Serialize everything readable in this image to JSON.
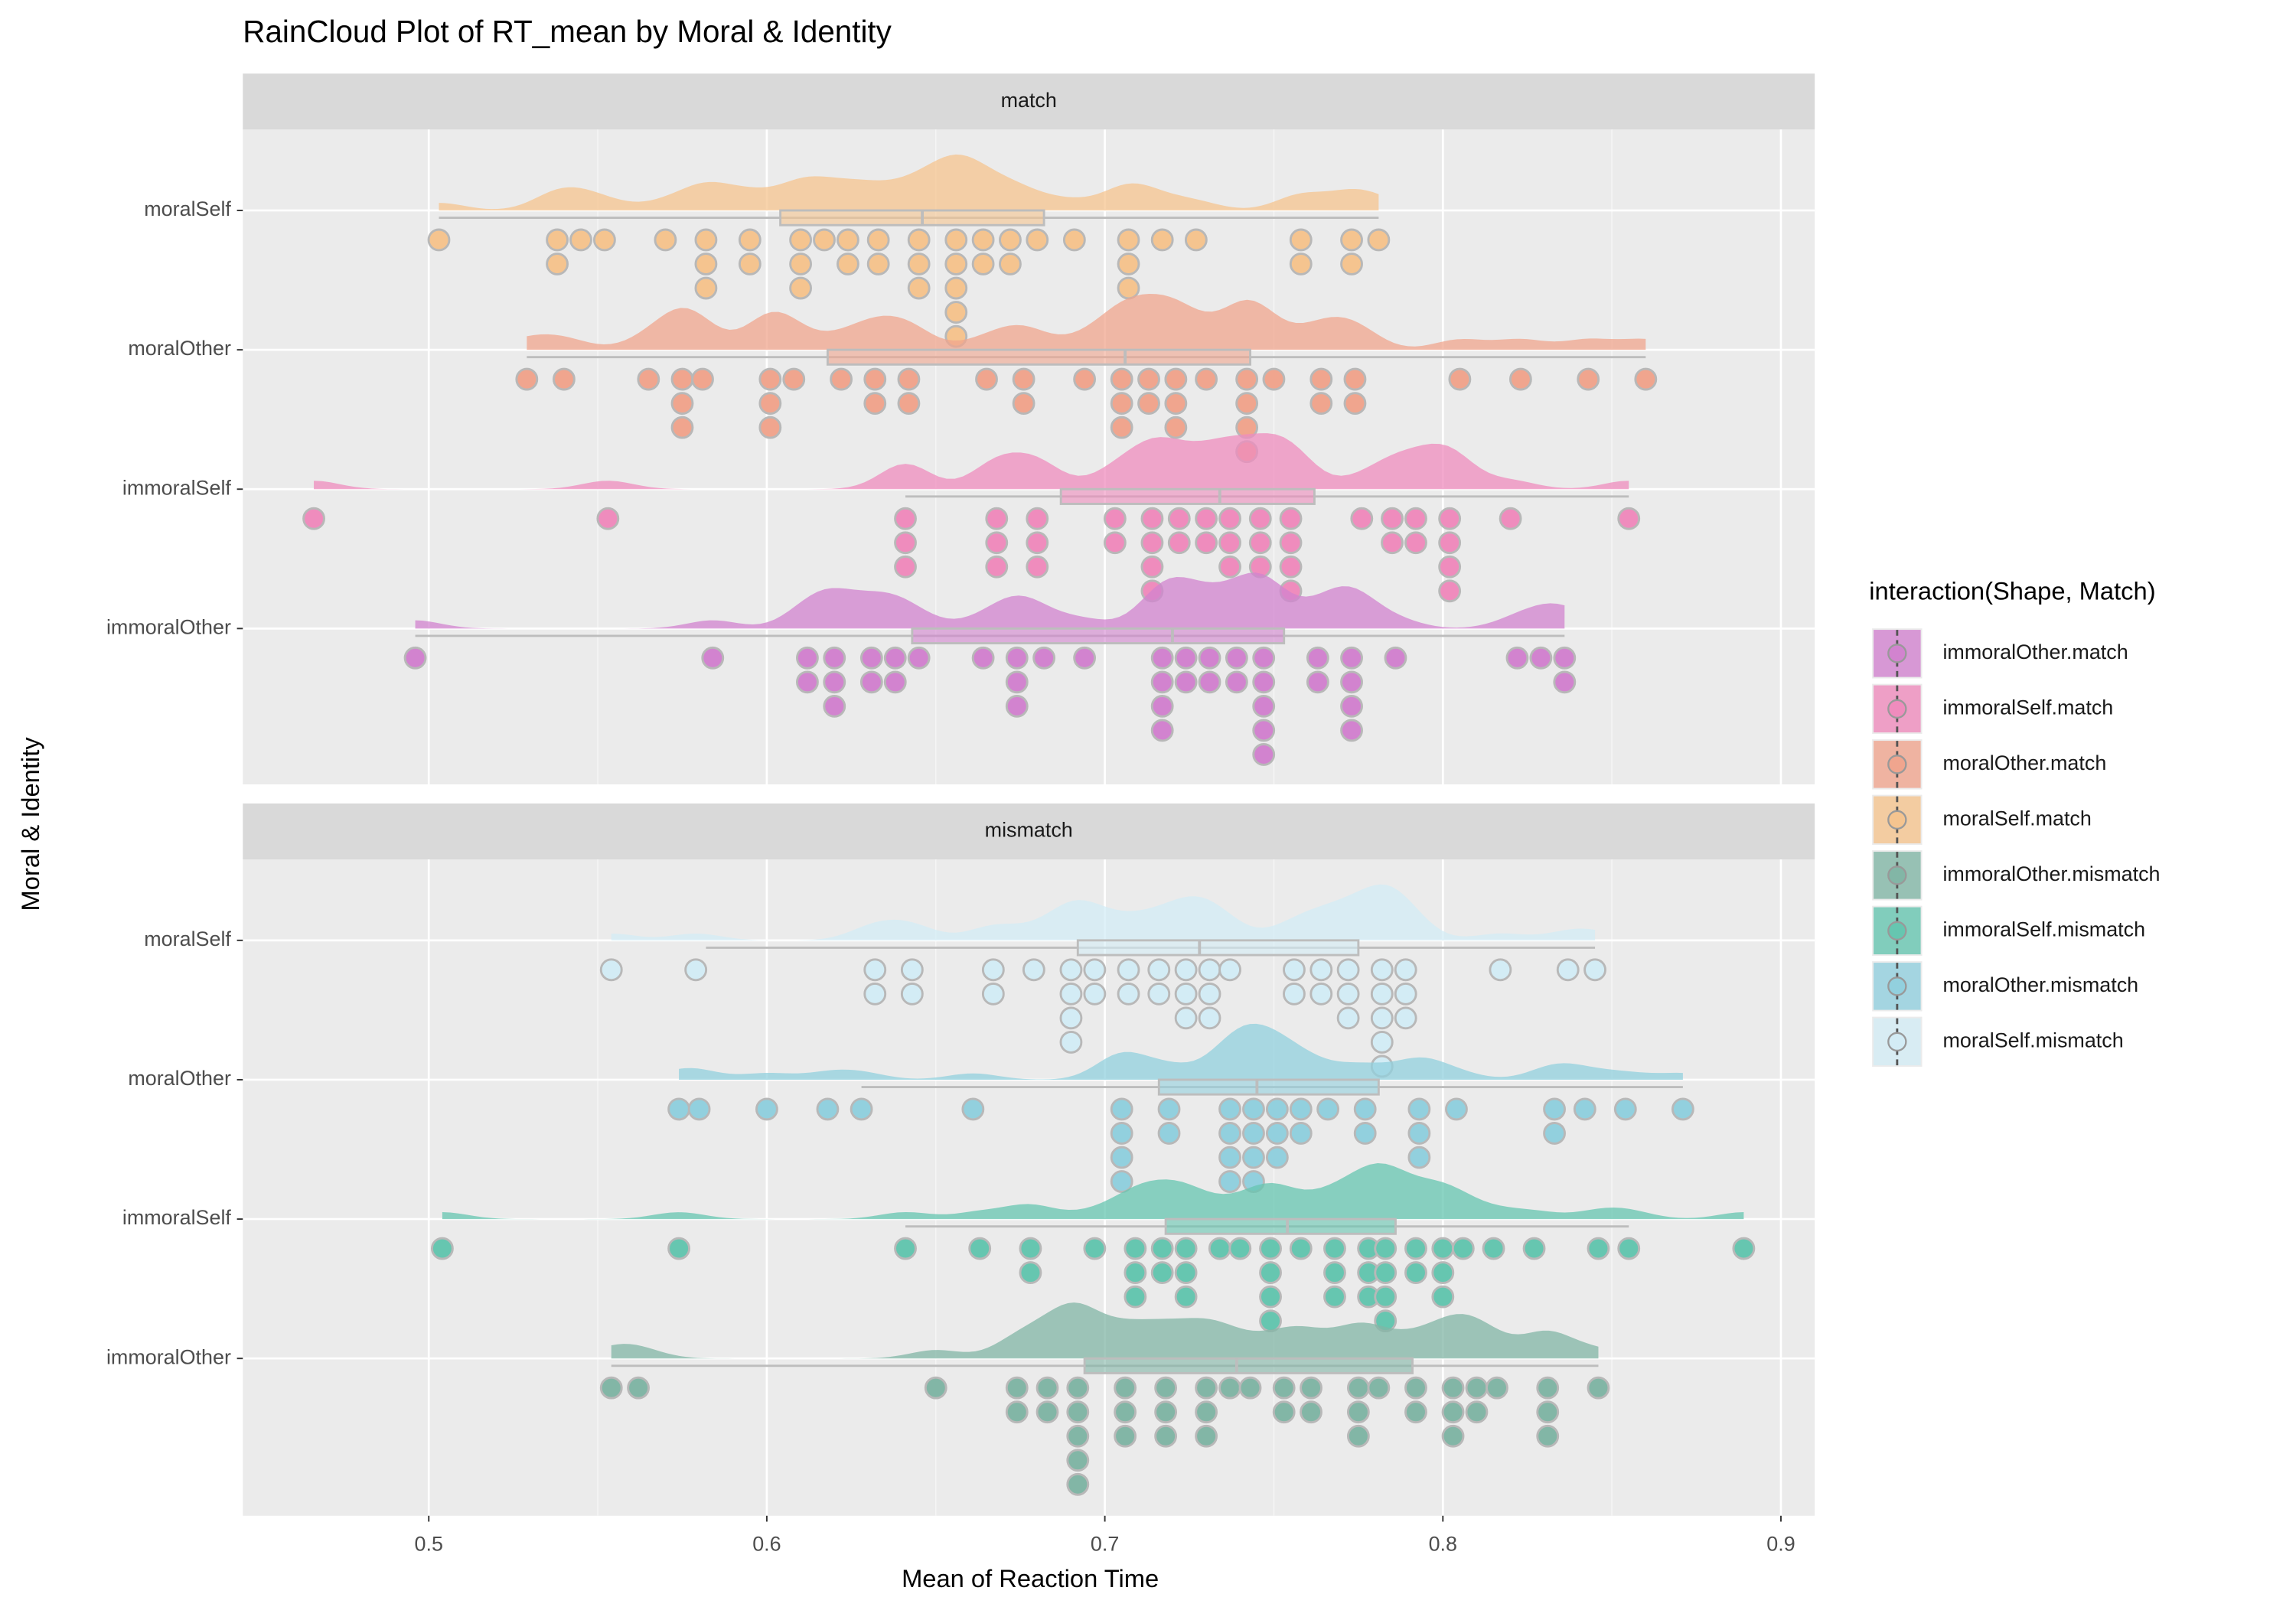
{
  "chart_data": {
    "type": "raincloud",
    "title": "RainCloud Plot of RT_mean by Moral & Identity",
    "x_label": "Mean of Reaction Time",
    "y_label": "Moral & Identity",
    "legend_title": "interaction(Shape, Match)",
    "xlim": [
      0.445,
      0.91
    ],
    "xticks": [
      0.5,
      0.6,
      0.7,
      0.8,
      0.9
    ],
    "grid": true,
    "facets": [
      {
        "label": "match",
        "groups": [
          {
            "name": "moralSelf",
            "color": "#f5c48f",
            "values": [
              0.503,
              0.538,
              0.538,
              0.545,
              0.552,
              0.57,
              0.582,
              0.582,
              0.582,
              0.595,
              0.595,
              0.61,
              0.61,
              0.61,
              0.617,
              0.624,
              0.624,
              0.633,
              0.633,
              0.645,
              0.645,
              0.645,
              0.656,
              0.656,
              0.656,
              0.656,
              0.656,
              0.664,
              0.664,
              0.672,
              0.672,
              0.68,
              0.691,
              0.707,
              0.707,
              0.707,
              0.717,
              0.727,
              0.758,
              0.758,
              0.773,
              0.773,
              0.781
            ],
            "box": {
              "whisker_low": 0.503,
              "q1": 0.604,
              "median": 0.646,
              "q3": 0.682,
              "whisker_high": 0.781
            }
          },
          {
            "name": "moralOther",
            "color": "#f0a58e",
            "values": [
              0.529,
              0.54,
              0.565,
              0.575,
              0.575,
              0.575,
              0.581,
              0.601,
              0.601,
              0.601,
              0.608,
              0.622,
              0.632,
              0.632,
              0.642,
              0.642,
              0.665,
              0.676,
              0.676,
              0.694,
              0.705,
              0.705,
              0.705,
              0.713,
              0.713,
              0.721,
              0.721,
              0.721,
              0.73,
              0.742,
              0.742,
              0.742,
              0.742,
              0.75,
              0.764,
              0.764,
              0.774,
              0.774,
              0.805,
              0.823,
              0.843,
              0.86
            ],
            "box": {
              "whisker_low": 0.529,
              "q1": 0.618,
              "median": 0.706,
              "q3": 0.743,
              "whisker_high": 0.86
            }
          },
          {
            "name": "immoralSelf",
            "color": "#ef8cbd",
            "values": [
              0.466,
              0.553,
              0.641,
              0.641,
              0.641,
              0.668,
              0.668,
              0.668,
              0.68,
              0.68,
              0.68,
              0.703,
              0.703,
              0.714,
              0.714,
              0.714,
              0.714,
              0.722,
              0.722,
              0.73,
              0.73,
              0.737,
              0.737,
              0.737,
              0.746,
              0.746,
              0.746,
              0.755,
              0.755,
              0.755,
              0.755,
              0.776,
              0.785,
              0.785,
              0.792,
              0.792,
              0.802,
              0.802,
              0.802,
              0.802,
              0.82,
              0.855
            ],
            "box": {
              "whisker_low": 0.641,
              "q1": 0.687,
              "median": 0.734,
              "q3": 0.762,
              "whisker_high": 0.855
            }
          },
          {
            "name": "immoralOther",
            "color": "#d283cf",
            "values": [
              0.496,
              0.584,
              0.612,
              0.612,
              0.62,
              0.62,
              0.62,
              0.631,
              0.631,
              0.638,
              0.638,
              0.645,
              0.664,
              0.674,
              0.674,
              0.674,
              0.682,
              0.694,
              0.717,
              0.717,
              0.717,
              0.717,
              0.724,
              0.724,
              0.731,
              0.731,
              0.739,
              0.739,
              0.747,
              0.747,
              0.747,
              0.747,
              0.747,
              0.763,
              0.763,
              0.773,
              0.773,
              0.773,
              0.773,
              0.786,
              0.822,
              0.829,
              0.836,
              0.836
            ],
            "box": {
              "whisker_low": 0.496,
              "q1": 0.643,
              "median": 0.72,
              "q3": 0.753,
              "whisker_high": 0.836
            }
          }
        ]
      },
      {
        "label": "mismatch",
        "groups": [
          {
            "name": "moralSelf",
            "color": "#d3ecf5",
            "values": [
              0.554,
              0.579,
              0.632,
              0.632,
              0.643,
              0.643,
              0.667,
              0.667,
              0.679,
              0.69,
              0.69,
              0.69,
              0.69,
              0.697,
              0.697,
              0.707,
              0.707,
              0.716,
              0.716,
              0.724,
              0.724,
              0.724,
              0.731,
              0.731,
              0.731,
              0.737,
              0.756,
              0.756,
              0.764,
              0.764,
              0.772,
              0.772,
              0.772,
              0.782,
              0.782,
              0.782,
              0.782,
              0.782,
              0.789,
              0.789,
              0.789,
              0.817,
              0.837,
              0.845
            ],
            "box": {
              "whisker_low": 0.582,
              "q1": 0.692,
              "median": 0.728,
              "q3": 0.775,
              "whisker_high": 0.845
            }
          },
          {
            "name": "moralOther",
            "color": "#92d0de",
            "values": [
              0.574,
              0.58,
              0.6,
              0.618,
              0.628,
              0.661,
              0.705,
              0.705,
              0.705,
              0.705,
              0.719,
              0.719,
              0.737,
              0.737,
              0.737,
              0.737,
              0.744,
              0.744,
              0.744,
              0.744,
              0.751,
              0.751,
              0.751,
              0.758,
              0.758,
              0.766,
              0.777,
              0.777,
              0.793,
              0.793,
              0.793,
              0.804,
              0.833,
              0.833,
              0.842,
              0.854,
              0.871
            ],
            "box": {
              "whisker_low": 0.628,
              "q1": 0.716,
              "median": 0.745,
              "q3": 0.781,
              "whisker_high": 0.871
            }
          },
          {
            "name": "immoralSelf",
            "color": "#66c6b0",
            "values": [
              0.504,
              0.574,
              0.641,
              0.663,
              0.678,
              0.678,
              0.697,
              0.709,
              0.709,
              0.709,
              0.717,
              0.717,
              0.724,
              0.724,
              0.724,
              0.734,
              0.74,
              0.749,
              0.749,
              0.749,
              0.749,
              0.758,
              0.768,
              0.768,
              0.768,
              0.778,
              0.778,
              0.778,
              0.783,
              0.783,
              0.783,
              0.783,
              0.792,
              0.792,
              0.8,
              0.8,
              0.8,
              0.806,
              0.815,
              0.827,
              0.846,
              0.855,
              0.889
            ],
            "box": {
              "whisker_low": 0.641,
              "q1": 0.718,
              "median": 0.754,
              "q3": 0.786,
              "whisker_high": 0.855
            }
          },
          {
            "name": "immoralOther",
            "color": "#82b6a6",
            "values": [
              0.554,
              0.562,
              0.65,
              0.674,
              0.674,
              0.683,
              0.683,
              0.692,
              0.692,
              0.692,
              0.692,
              0.692,
              0.706,
              0.706,
              0.706,
              0.718,
              0.718,
              0.718,
              0.73,
              0.73,
              0.73,
              0.737,
              0.743,
              0.753,
              0.753,
              0.761,
              0.761,
              0.775,
              0.775,
              0.775,
              0.781,
              0.792,
              0.792,
              0.803,
              0.803,
              0.803,
              0.81,
              0.81,
              0.816,
              0.831,
              0.831,
              0.831,
              0.846
            ],
            "box": {
              "whisker_low": 0.554,
              "q1": 0.694,
              "median": 0.739,
              "q3": 0.791,
              "whisker_high": 0.846
            }
          }
        ]
      }
    ],
    "legend": [
      {
        "label": "immoralOther.match",
        "color": "#d283cf"
      },
      {
        "label": "immoralSelf.match",
        "color": "#ef8cbd"
      },
      {
        "label": "moralOther.match",
        "color": "#f0a58e"
      },
      {
        "label": "moralSelf.match",
        "color": "#f5c48f"
      },
      {
        "label": "immoralOther.mismatch",
        "color": "#82b6a6"
      },
      {
        "label": "immoralSelf.mismatch",
        "color": "#66c6b0"
      },
      {
        "label": "moralOther.mismatch",
        "color": "#92d0de"
      },
      {
        "label": "moralSelf.mismatch",
        "color": "#d3ecf5"
      }
    ]
  }
}
